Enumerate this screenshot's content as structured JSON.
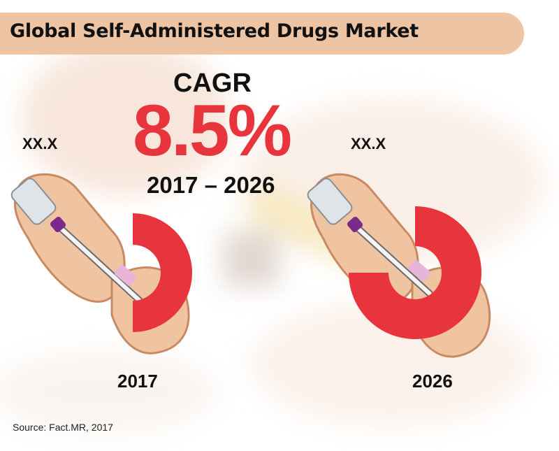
{
  "title": "Global Self-Administered Drugs Market",
  "cagr": {
    "label": "CAGR",
    "value": "8.5%",
    "period": "2017 – 2026"
  },
  "source": "Source: Fact.MR, 2017",
  "colors": {
    "accent": "#e8353d",
    "title_bar": "#edc4a4",
    "text": "#111111"
  },
  "chart_data": {
    "type": "pie",
    "title": "Global Self-Administered Drugs Market",
    "categories": [
      "2017",
      "2026"
    ],
    "series": [
      {
        "values": [
          "XX.X",
          "XX.X"
        ]
      }
    ],
    "value_labels": [
      "XX.X",
      "XX.X"
    ],
    "ring_fill_fraction": [
      0.5,
      0.75
    ]
  }
}
